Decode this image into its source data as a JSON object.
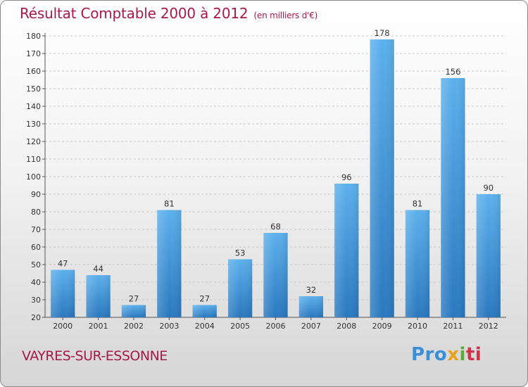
{
  "header": {
    "title": "Résultat Comptable 2000 à 2012",
    "subtitle": "(en milliers d'€)"
  },
  "commune": "VAYRES-SUR-ESSONNE",
  "logo": {
    "part1": "Pro",
    "part2": "x",
    "part3": "i",
    "part4": "ti"
  },
  "colors": {
    "bar": "#4a9ee0",
    "bar_dark": "#2a78bf",
    "title": "#a8194a"
  },
  "chart_data": {
    "type": "bar",
    "title": "Résultat Comptable 2000 à 2012",
    "xlabel": "",
    "ylabel": "",
    "categories": [
      "2000",
      "2001",
      "2002",
      "2003",
      "2004",
      "2005",
      "2006",
      "2007",
      "2008",
      "2009",
      "2010",
      "2011",
      "2012"
    ],
    "values": [
      47,
      44,
      27,
      81,
      27,
      53,
      68,
      32,
      96,
      178,
      81,
      156,
      90
    ],
    "ylim": [
      20,
      180
    ],
    "yticks": [
      20,
      30,
      40,
      50,
      60,
      70,
      80,
      90,
      100,
      110,
      120,
      130,
      140,
      150,
      160,
      170,
      180
    ],
    "grid": true
  }
}
